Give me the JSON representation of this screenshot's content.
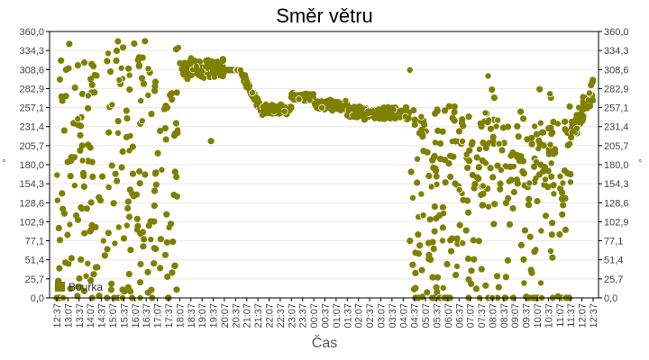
{
  "chart": {
    "title": "Směr větru",
    "xlabel": "Čas",
    "ylabel": "°",
    "legend_label": "Bouřka",
    "series_color": "#808000"
  },
  "chart_data": {
    "type": "scatter",
    "title": "Směr větru",
    "xlabel": "Čas",
    "ylabel": "°",
    "ylim": [
      0,
      360
    ],
    "yticks": [
      "0,0",
      "25,7",
      "51,4",
      "77,1",
      "102,9",
      "128,6",
      "154,3",
      "180,0",
      "205,7",
      "231,4",
      "257,1",
      "282,9",
      "308,6",
      "334,3",
      "360,0"
    ],
    "xticks": [
      "12:37",
      "13:07",
      "13:37",
      "14:07",
      "14:37",
      "15:07",
      "15:37",
      "16:07",
      "16:37",
      "17:07",
      "17:37",
      "18:07",
      "18:37",
      "19:07",
      "19:37",
      "20:07",
      "20:37",
      "21:07",
      "21:37",
      "22:07",
      "22:37",
      "23:07",
      "23:37",
      "00:07",
      "00:37",
      "01:07",
      "01:37",
      "02:07",
      "02:37",
      "03:07",
      "03:37",
      "04:07",
      "04:37",
      "05:07",
      "05:37",
      "06:07",
      "06:37",
      "07:07",
      "07:37",
      "08:07",
      "08:37",
      "09:07",
      "09:37",
      "10:07",
      "10:37",
      "11:07",
      "11:37",
      "12:07",
      "12:37"
    ],
    "grid": true,
    "legend_position": "bottom-left inside plot",
    "series": [
      {
        "name": "Bouřka",
        "color": "#808000",
        "marker": "circle",
        "segments": [
          {
            "from_tick": 0,
            "to_tick": 11,
            "pattern": "scattered",
            "range": [
              0,
              350
            ],
            "note": "highly variable directions 0–350°"
          },
          {
            "from_tick": 11,
            "to_tick": 15,
            "pattern": "band",
            "center": 310,
            "spread": 15
          },
          {
            "from_tick": 15,
            "to_tick": 16.5,
            "pattern": "constant",
            "value": 308
          },
          {
            "from_tick": 16.5,
            "to_tick": 18.5,
            "pattern": "decline",
            "start": 305,
            "end": 250
          },
          {
            "from_tick": 18.5,
            "to_tick": 21,
            "pattern": "band",
            "center": 255,
            "spread": 8
          },
          {
            "from_tick": 21,
            "to_tick": 23,
            "pattern": "band",
            "center": 272,
            "spread": 6
          },
          {
            "from_tick": 23,
            "to_tick": 26,
            "pattern": "band",
            "center": 260,
            "spread": 8
          },
          {
            "from_tick": 26,
            "to_tick": 31.5,
            "pattern": "band",
            "center": 250,
            "spread": 10
          },
          {
            "from_tick": 31.5,
            "to_tick": 36,
            "pattern": "scattered",
            "range": [
              0,
              260
            ]
          },
          {
            "from_tick": 36,
            "to_tick": 46,
            "pattern": "scattered",
            "range": [
              0,
              285
            ],
            "center": 185
          },
          {
            "from_tick": 46,
            "to_tick": 48,
            "pattern": "rise",
            "start": 220,
            "end": 280,
            "spread": 20
          }
        ],
        "outliers": [
          {
            "tick": 13.8,
            "value": 212
          },
          {
            "tick": 31.6,
            "value": 308
          },
          {
            "tick": 38.6,
            "value": 300
          }
        ]
      }
    ]
  }
}
